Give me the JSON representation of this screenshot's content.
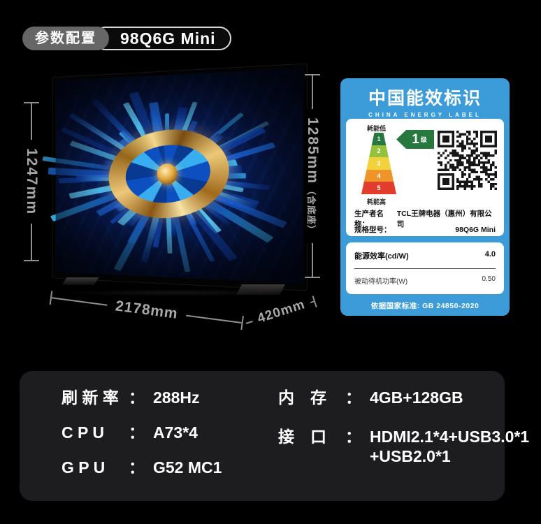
{
  "header": {
    "tag": "参数配置",
    "model": "98Q6G Mini"
  },
  "dimensions": {
    "height": "1247mm",
    "height_with_stand": "1285mm",
    "height_with_stand_note": "（含底座）",
    "width": "2178mm",
    "depth": "420mm"
  },
  "energy_label": {
    "title": "中国能效标识",
    "subtitle": "CHINA ENERGY LABEL",
    "low_energy": "耗能低",
    "high_energy": "耗能高",
    "grade": "1",
    "grade_unit": "级",
    "tiers": [
      "1",
      "2",
      "3",
      "4",
      "5"
    ],
    "producer_label": "生产者名称：",
    "producer": "TCL王牌电器（惠州）有限公司",
    "model_label": "规格型号：",
    "model": "98Q6G Mini",
    "efficiency_label": "能源效率(cd/W)",
    "efficiency_value": "4.0",
    "standby_label": "被动待机功率(W)",
    "standby_value": "0.50",
    "footer": "依据国家标准: GB 24850-2020"
  },
  "specs": {
    "separator": "：",
    "left": [
      {
        "label": "刷 新 率",
        "value": "288Hz"
      },
      {
        "label": "C P U",
        "value": "A73*4"
      },
      {
        "label": "G P U",
        "value": "G52 MC1"
      }
    ],
    "right": [
      {
        "label": "内　存",
        "value": "4GB+128GB"
      },
      {
        "label": "接　口",
        "value": "HDMI2.1*4+USB3.0*1 +USB2.0*1"
      }
    ]
  },
  "colors": {
    "energy_label_blue": "#3b9cd9",
    "grade_green": "#27783f",
    "tier_colors": [
      "#27783f",
      "#95c13d",
      "#f2d23c",
      "#ef9428",
      "#e23c2d"
    ],
    "spec_panel_bg": "#1d1d1f",
    "dimension_gray": "#9b9b9b",
    "tag_gray": "#666666",
    "screen_blue": "#0c2d7c",
    "gold": "#e8c069"
  }
}
